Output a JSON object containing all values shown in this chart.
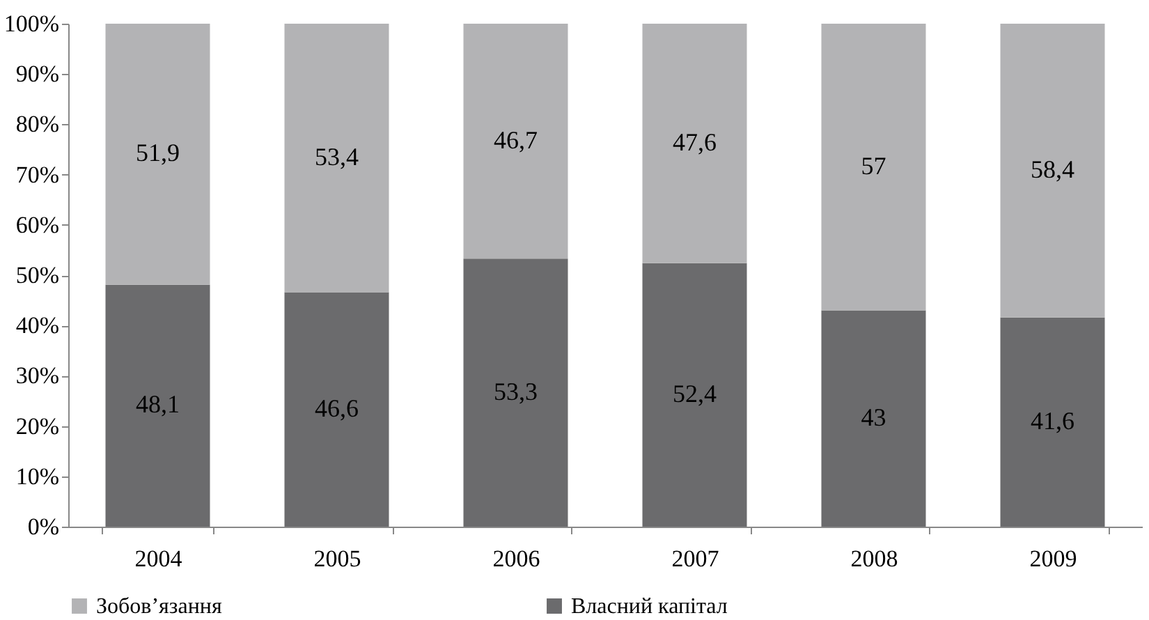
{
  "chart_data": {
    "type": "bar",
    "stacked": true,
    "categories": [
      "2004",
      "2005",
      "2006",
      "2007",
      "2008",
      "2009"
    ],
    "series": [
      {
        "name": "Власний капітал",
        "color": "#6b6b6d",
        "values": [
          48.1,
          46.6,
          53.3,
          52.4,
          43,
          41.6
        ],
        "value_labels": [
          "48,1",
          "46,6",
          "53,3",
          "52,4",
          "43",
          "41,6"
        ]
      },
      {
        "name": "Зобов’язання",
        "color": "#b3b3b5",
        "values": [
          51.9,
          53.4,
          46.7,
          47.6,
          57,
          58.4
        ],
        "value_labels": [
          "51,9",
          "53,4",
          "46,7",
          "47,6",
          "57",
          "58,4"
        ]
      }
    ],
    "ylim": [
      0,
      100
    ],
    "yticks": [
      {
        "value": 0,
        "label": "0%"
      },
      {
        "value": 10,
        "label": "10%"
      },
      {
        "value": 20,
        "label": "20%"
      },
      {
        "value": 30,
        "label": "30%"
      },
      {
        "value": 40,
        "label": "40%"
      },
      {
        "value": 50,
        "label": "50%"
      },
      {
        "value": 60,
        "label": "60%"
      },
      {
        "value": 70,
        "label": "70%"
      },
      {
        "value": 80,
        "label": "80%"
      },
      {
        "value": 90,
        "label": "90%"
      },
      {
        "value": 100,
        "label": "100%"
      }
    ],
    "grid": false,
    "legend": "bottom"
  }
}
